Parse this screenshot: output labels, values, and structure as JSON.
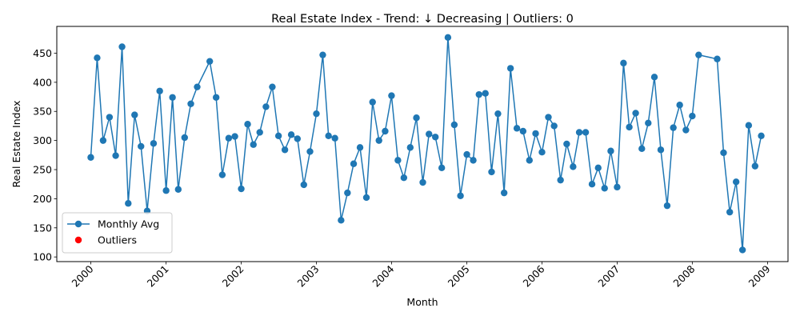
{
  "chart_data": {
    "type": "line",
    "title": "Real Estate Index - Trend: ↓ Decreasing | Outliers: 0",
    "xlabel": "Month",
    "ylabel": "Real Estate Index",
    "x_range": [
      "1999-07-20",
      "2009-04-10"
    ],
    "ylim": [
      92,
      496
    ],
    "x_ticks": [
      {
        "date": "2000-01-01",
        "label": "2000"
      },
      {
        "date": "2001-01-01",
        "label": "2001"
      },
      {
        "date": "2002-01-01",
        "label": "2002"
      },
      {
        "date": "2003-01-01",
        "label": "2003"
      },
      {
        "date": "2004-01-01",
        "label": "2004"
      },
      {
        "date": "2005-01-01",
        "label": "2005"
      },
      {
        "date": "2006-01-01",
        "label": "2006"
      },
      {
        "date": "2007-01-01",
        "label": "2007"
      },
      {
        "date": "2008-01-01",
        "label": "2008"
      },
      {
        "date": "2009-01-01",
        "label": "2009"
      }
    ],
    "y_ticks": [
      100,
      150,
      200,
      250,
      300,
      350,
      400,
      450
    ],
    "grid": false,
    "legend_position": "lower-left",
    "colors": {
      "line": "#1f77b4",
      "outliers": "#ff0000"
    },
    "series": [
      {
        "name": "Monthly Avg",
        "points": [
          [
            "2000-01",
            271
          ],
          [
            "2000-02",
            442
          ],
          [
            "2000-03",
            300
          ],
          [
            "2000-04",
            340
          ],
          [
            "2000-05",
            274
          ],
          [
            "2000-06",
            461
          ],
          [
            "2000-07",
            192
          ],
          [
            "2000-08",
            344
          ],
          [
            "2000-09",
            290
          ],
          [
            "2000-10",
            179
          ],
          [
            "2000-11",
            295
          ],
          [
            "2000-12",
            385
          ],
          [
            "2001-01",
            214
          ],
          [
            "2001-02",
            374
          ],
          [
            "2001-03",
            216
          ],
          [
            "2001-04",
            305
          ],
          [
            "2001-05",
            363
          ],
          [
            "2001-06",
            392
          ],
          [
            "2001-08",
            436
          ],
          [
            "2001-09",
            374
          ],
          [
            "2001-10",
            241
          ],
          [
            "2001-11",
            304
          ],
          [
            "2001-12",
            307
          ],
          [
            "2002-01",
            217
          ],
          [
            "2002-02",
            328
          ],
          [
            "2002-03",
            293
          ],
          [
            "2002-04",
            314
          ],
          [
            "2002-05",
            358
          ],
          [
            "2002-06",
            392
          ],
          [
            "2002-07",
            308
          ],
          [
            "2002-08",
            284
          ],
          [
            "2002-09",
            310
          ],
          [
            "2002-10",
            303
          ],
          [
            "2002-11",
            224
          ],
          [
            "2002-12",
            281
          ],
          [
            "2003-01",
            346
          ],
          [
            "2003-02",
            447
          ],
          [
            "2003-03",
            308
          ],
          [
            "2003-04",
            304
          ],
          [
            "2003-05",
            163
          ],
          [
            "2003-06",
            210
          ],
          [
            "2003-07",
            260
          ],
          [
            "2003-08",
            288
          ],
          [
            "2003-09",
            202
          ],
          [
            "2003-10",
            366
          ],
          [
            "2003-11",
            300
          ],
          [
            "2003-12",
            316
          ],
          [
            "2004-01",
            377
          ],
          [
            "2004-02",
            266
          ],
          [
            "2004-03",
            236
          ],
          [
            "2004-04",
            288
          ],
          [
            "2004-05",
            339
          ],
          [
            "2004-06",
            228
          ],
          [
            "2004-07",
            311
          ],
          [
            "2004-08",
            306
          ],
          [
            "2004-09",
            253
          ],
          [
            "2004-10",
            477
          ],
          [
            "2004-11",
            327
          ],
          [
            "2004-12",
            205
          ],
          [
            "2005-01",
            276
          ],
          [
            "2005-02",
            266
          ],
          [
            "2005-03",
            379
          ],
          [
            "2005-04",
            381
          ],
          [
            "2005-05",
            246
          ],
          [
            "2005-06",
            346
          ],
          [
            "2005-07",
            210
          ],
          [
            "2005-08",
            424
          ],
          [
            "2005-09",
            321
          ],
          [
            "2005-10",
            316
          ],
          [
            "2005-11",
            266
          ],
          [
            "2005-12",
            312
          ],
          [
            "2006-01",
            280
          ],
          [
            "2006-02",
            340
          ],
          [
            "2006-03",
            325
          ],
          [
            "2006-04",
            232
          ],
          [
            "2006-05",
            294
          ],
          [
            "2006-06",
            255
          ],
          [
            "2006-07",
            314
          ],
          [
            "2006-08",
            314
          ],
          [
            "2006-09",
            225
          ],
          [
            "2006-10",
            253
          ],
          [
            "2006-11",
            218
          ],
          [
            "2006-12",
            282
          ],
          [
            "2007-01",
            220
          ],
          [
            "2007-02",
            433
          ],
          [
            "2007-03",
            323
          ],
          [
            "2007-04",
            347
          ],
          [
            "2007-05",
            286
          ],
          [
            "2007-06",
            330
          ],
          [
            "2007-07",
            409
          ],
          [
            "2007-08",
            284
          ],
          [
            "2007-09",
            188
          ],
          [
            "2007-10",
            322
          ],
          [
            "2007-11",
            361
          ],
          [
            "2007-12",
            318
          ],
          [
            "2008-01",
            342
          ],
          [
            "2008-02",
            447
          ],
          [
            "2008-05",
            440
          ],
          [
            "2008-06",
            279
          ],
          [
            "2008-07",
            177
          ],
          [
            "2008-08",
            229
          ],
          [
            "2008-09",
            112
          ],
          [
            "2008-10",
            326
          ],
          [
            "2008-11",
            256
          ],
          [
            "2008-12",
            308
          ]
        ]
      },
      {
        "name": "Outliers",
        "points": []
      }
    ]
  }
}
